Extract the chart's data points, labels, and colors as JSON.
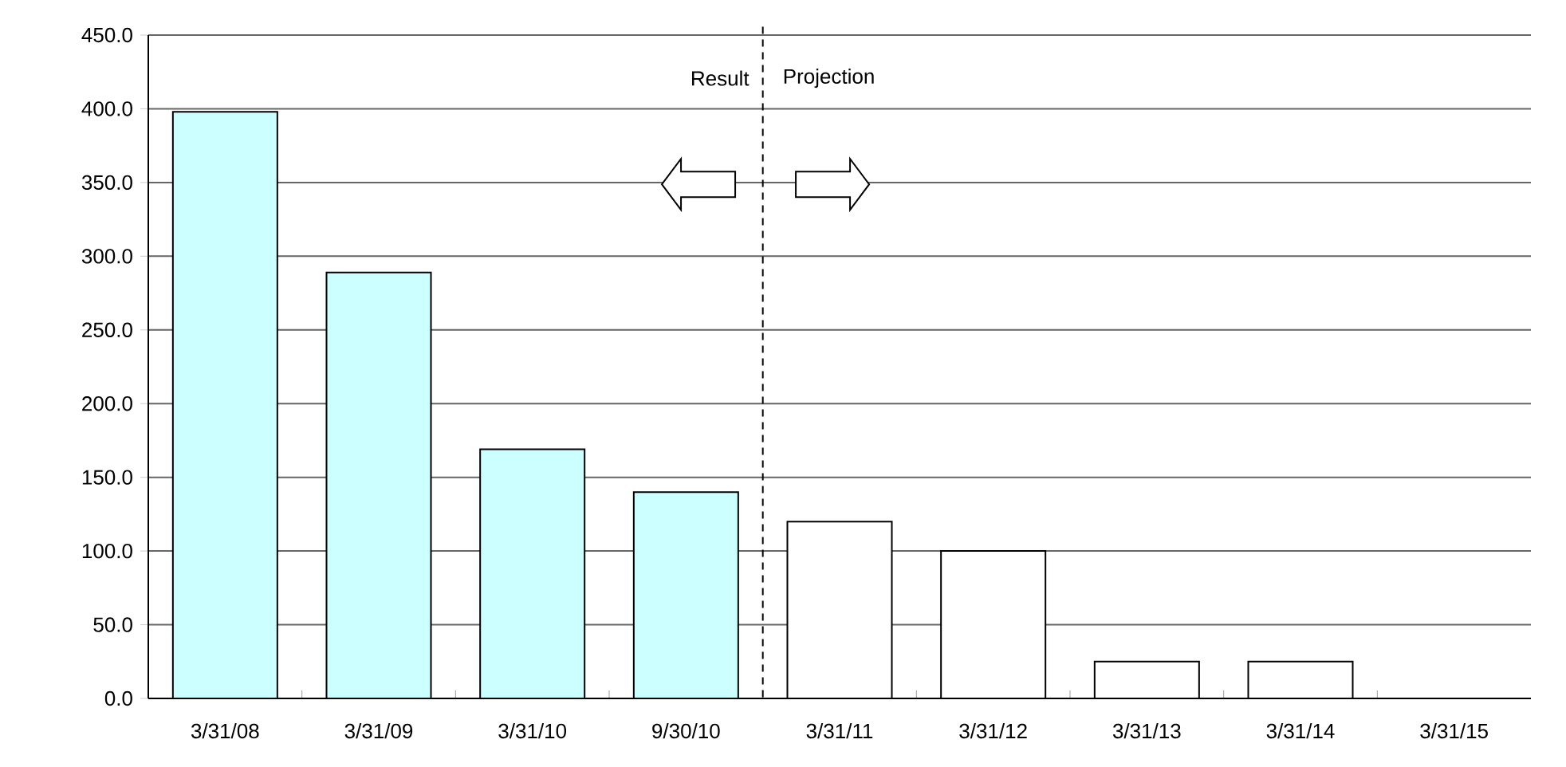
{
  "chart_data": {
    "type": "bar",
    "categories": [
      "3/31/08",
      "3/31/09",
      "3/31/10",
      "9/30/10",
      "3/31/11",
      "3/31/12",
      "3/31/13",
      "3/31/14",
      "3/31/15"
    ],
    "values": [
      398,
      289,
      169,
      140,
      120,
      100,
      25,
      25,
      0
    ],
    "colors": [
      "#ccffff",
      "#ccffff",
      "#ccffff",
      "#ccffff",
      "#ffffff",
      "#ffffff",
      "#ffffff",
      "#ffffff",
      "#ffffff"
    ],
    "ylim": [
      0,
      450
    ],
    "yticks": [
      {
        "value": 0,
        "label": "0.0"
      },
      {
        "value": 50,
        "label": "50.0"
      },
      {
        "value": 100,
        "label": "100.0"
      },
      {
        "value": 150,
        "label": "150.0"
      },
      {
        "value": 200,
        "label": "200.0"
      },
      {
        "value": 250,
        "label": "250.0"
      },
      {
        "value": 300,
        "label": "300.0"
      },
      {
        "value": 350,
        "label": "350.0"
      },
      {
        "value": 400,
        "label": "400.0"
      },
      {
        "value": 450,
        "label": "450.0"
      }
    ],
    "grid": "y",
    "annotations": [
      "Result",
      "Projection"
    ]
  }
}
